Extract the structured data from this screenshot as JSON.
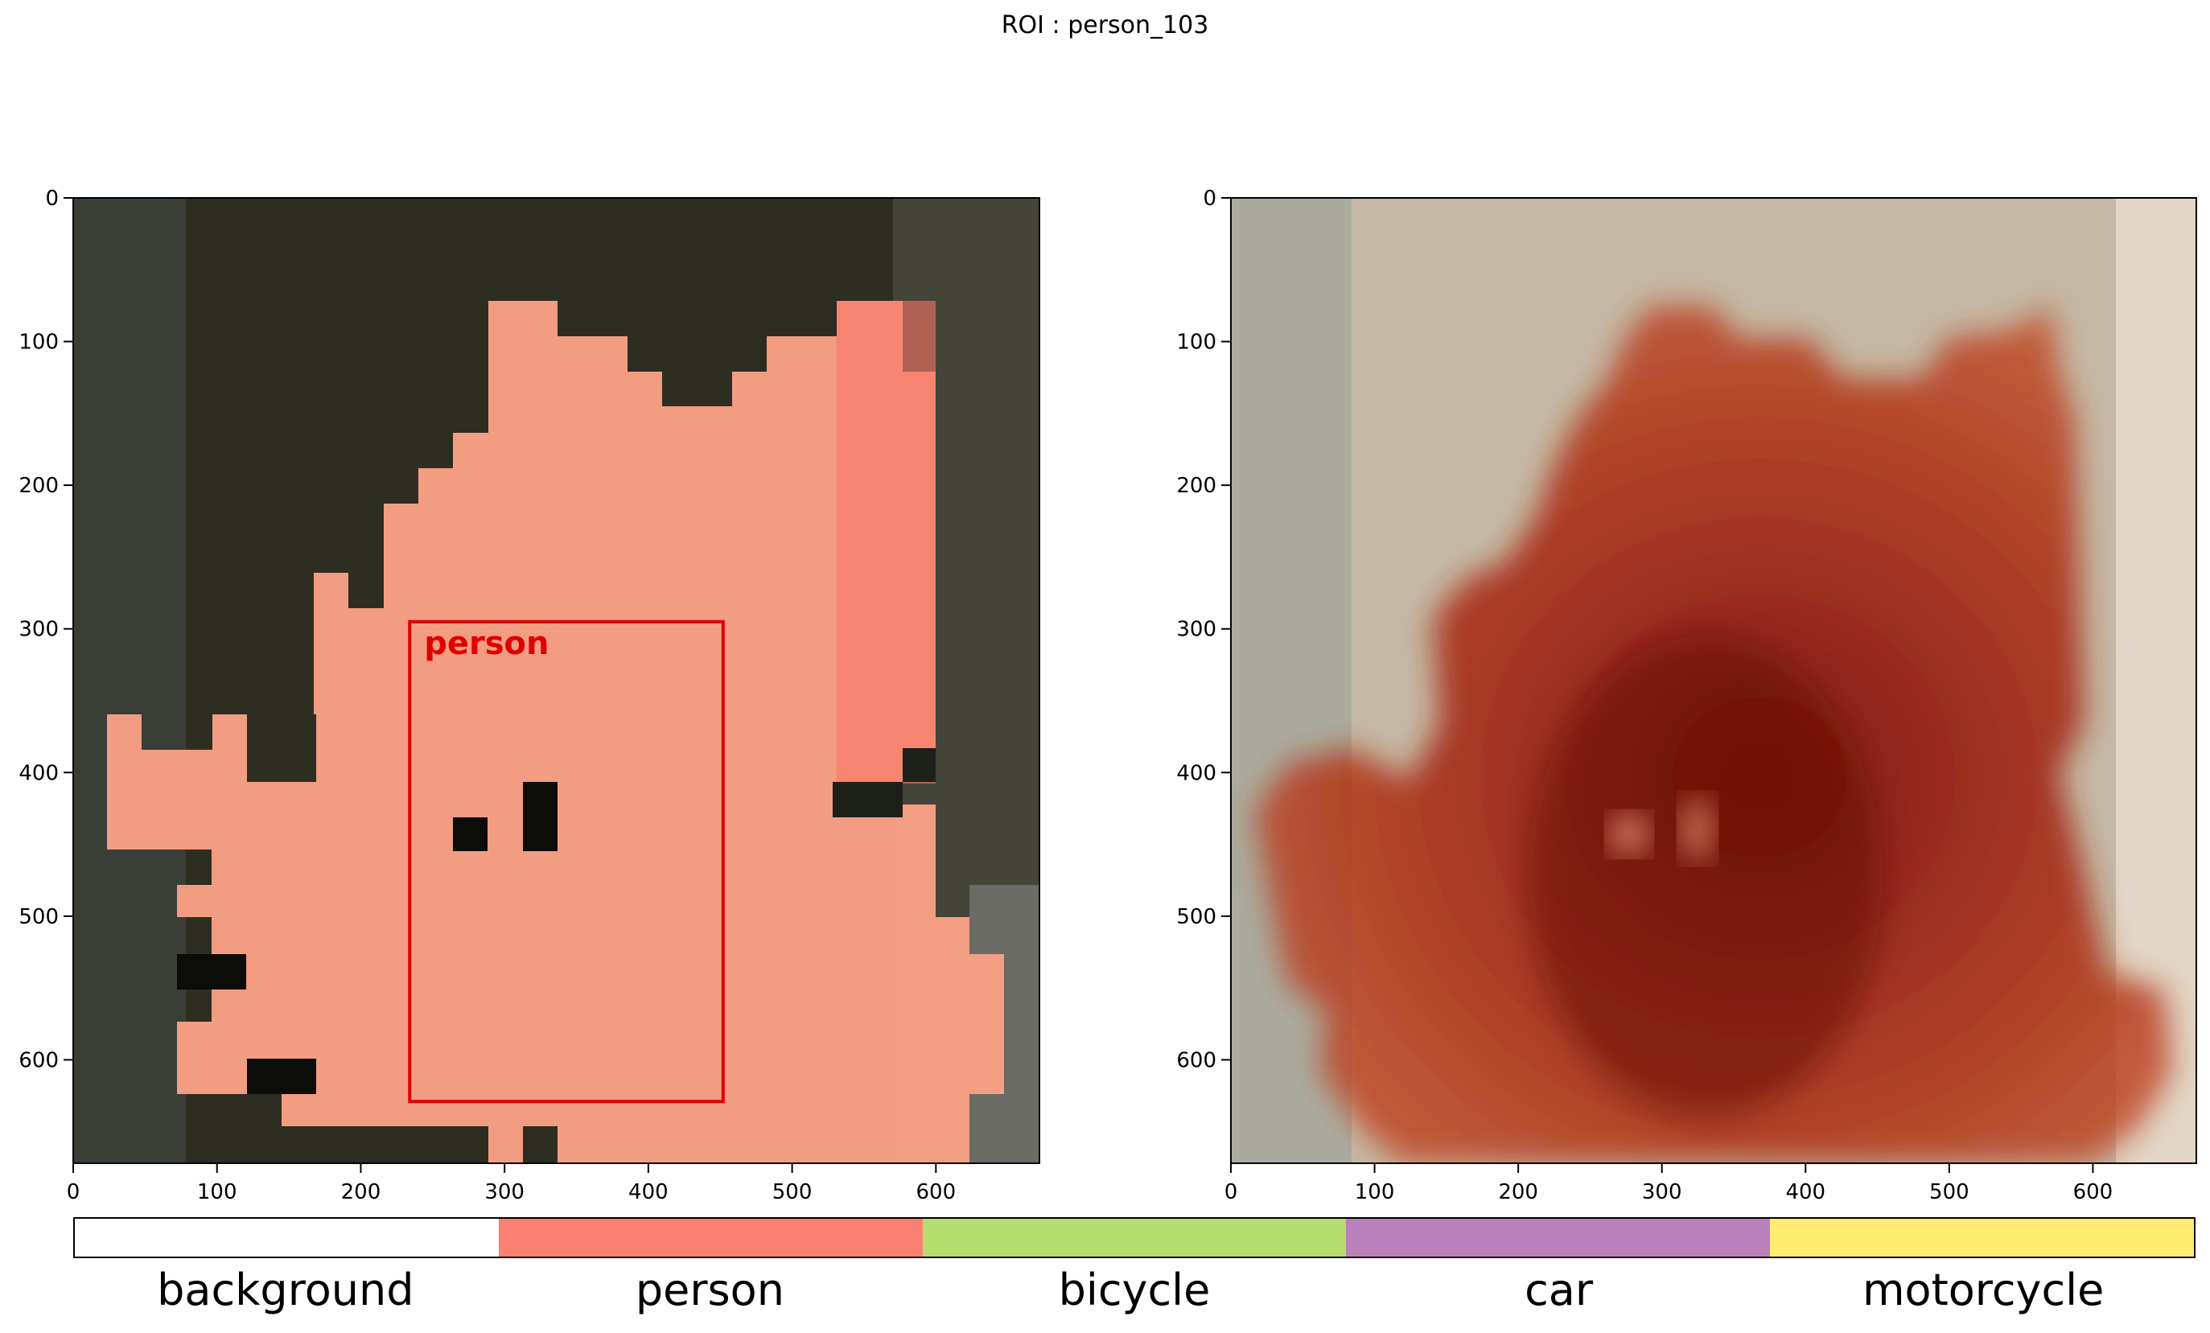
{
  "figure": {
    "title": "ROI : person_103"
  },
  "panels": [
    {
      "name": "segmentation-overlay",
      "x_ticks": [
        "0",
        "100",
        "200",
        "300",
        "400",
        "500",
        "600"
      ],
      "y_ticks": [
        "0",
        "100",
        "200",
        "300",
        "400",
        "500",
        "600"
      ],
      "xlim": [
        0,
        672
      ],
      "ylim": [
        672,
        0
      ],
      "detection": {
        "label": "person",
        "box": [
          234,
          295,
          452,
          629
        ],
        "color": "#e10000"
      }
    },
    {
      "name": "attention-heatmap",
      "x_ticks": [
        "0",
        "100",
        "200",
        "300",
        "400",
        "500",
        "600"
      ],
      "y_ticks": [
        "0",
        "100",
        "200",
        "300",
        "400",
        "500",
        "600"
      ],
      "xlim": [
        0,
        672
      ],
      "ylim": [
        672,
        0
      ]
    }
  ],
  "colorbar": {
    "classes": [
      {
        "label": "background",
        "color": "#ffffff"
      },
      {
        "label": "person",
        "color": "#fa8072"
      },
      {
        "label": "bicycle",
        "color": "#b5de6e"
      },
      {
        "label": "car",
        "color": "#bc80bd"
      },
      {
        "label": "motorcycle",
        "color": "#ffed6f"
      }
    ]
  }
}
